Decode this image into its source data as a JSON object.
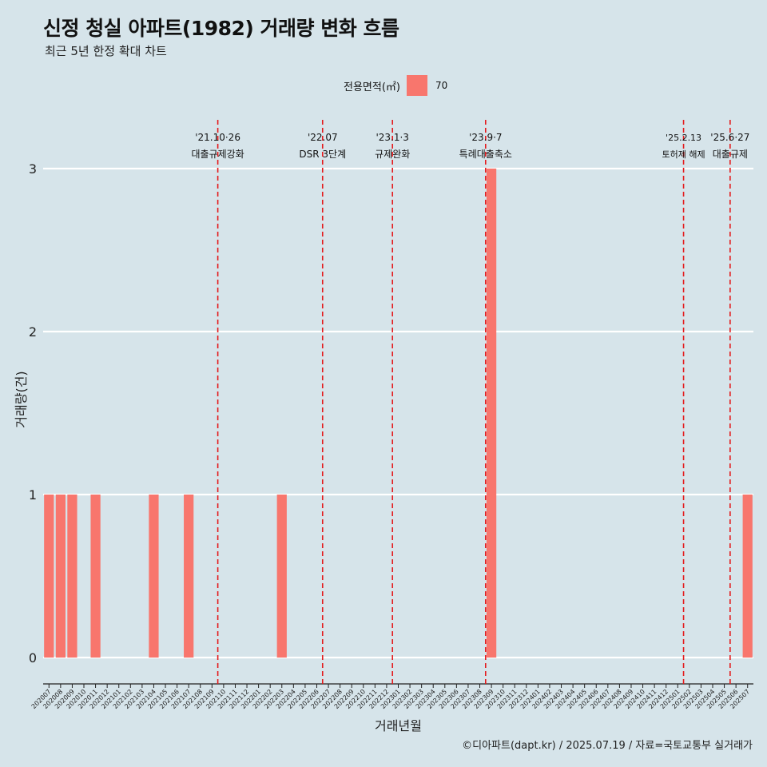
{
  "title": "신정 청실 아파트(1982) 거래량 변화 흐름",
  "subtitle": "최근 5년 한정 확대 차트",
  "caption": "©디아파트(dapt.kr) / 2025.07.19 / 자료=국토교통부 실거래가",
  "legend": {
    "label": "전용면적(㎡)",
    "value": "70",
    "color": "#f8766d"
  },
  "chart_data": {
    "type": "bar",
    "xlabel": "거래년월",
    "ylabel": "거래량(건)",
    "ylim": [
      0,
      3
    ],
    "yticks": [
      0,
      1,
      2,
      3
    ],
    "bar_color": "#f8766d",
    "categories": [
      "202007",
      "202008",
      "202009",
      "202010",
      "202011",
      "202012",
      "202101",
      "202102",
      "202103",
      "202104",
      "202105",
      "202106",
      "202107",
      "202108",
      "202109",
      "202110",
      "202111",
      "202112",
      "202201",
      "202202",
      "202203",
      "202204",
      "202205",
      "202206",
      "202207",
      "202208",
      "202209",
      "202210",
      "202211",
      "202212",
      "202301",
      "202302",
      "202303",
      "202304",
      "202305",
      "202306",
      "202307",
      "202308",
      "202309",
      "202310",
      "202311",
      "202312",
      "202401",
      "202402",
      "202403",
      "202404",
      "202405",
      "202406",
      "202407",
      "202408",
      "202409",
      "202410",
      "202411",
      "202412",
      "202501",
      "202502",
      "202503",
      "202504",
      "202505",
      "202506",
      "202507"
    ],
    "series": [
      {
        "name": "70",
        "values": [
          1,
          1,
          1,
          0,
          1,
          0,
          0,
          0,
          0,
          1,
          0,
          0,
          1,
          0,
          0,
          0,
          0,
          0,
          0,
          0,
          1,
          0,
          0,
          0,
          0,
          0,
          0,
          0,
          0,
          0,
          0,
          0,
          0,
          0,
          0,
          0,
          0,
          0,
          3,
          0,
          0,
          0,
          0,
          0,
          0,
          0,
          0,
          0,
          0,
          0,
          0,
          0,
          0,
          0,
          0,
          0,
          0,
          0,
          0,
          0,
          1
        ]
      }
    ],
    "annotations": [
      {
        "x": 15.0,
        "date": "'21.10·26",
        "label": "대출규제강화"
      },
      {
        "x": 24.0,
        "date": "'22.07",
        "label": "DSR 3단계"
      },
      {
        "x": 30.0,
        "date": "'23.1·3",
        "label": "규제완화"
      },
      {
        "x": 38.0,
        "date": "'23.9·7",
        "label": "특례대출축소"
      },
      {
        "x": 55.0,
        "date": "'25.2.13",
        "label": "토허제 해제"
      },
      {
        "x": 59.0,
        "date": "'25.6·27",
        "label": "대출규제"
      }
    ]
  }
}
